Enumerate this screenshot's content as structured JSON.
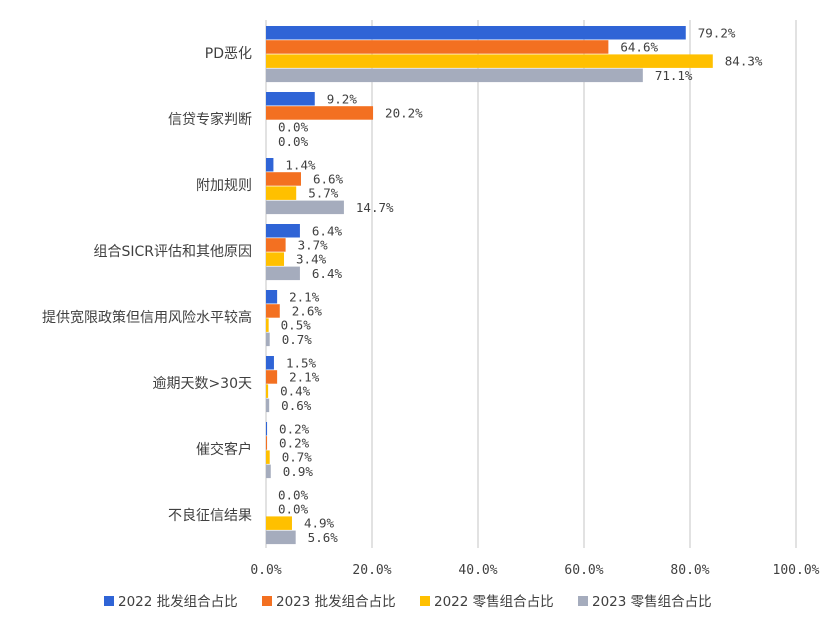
{
  "chart_data": {
    "type": "bar",
    "orientation": "horizontal",
    "categories": [
      "PD恶化",
      "信贷专家判断",
      "附加规则",
      "组合SICR评估和其他原因",
      "提供宽限政策但信用风险水平较高",
      "逾期天数>30天",
      "催交客户",
      "不良征信结果"
    ],
    "series": [
      {
        "name": "2022 批发组合占比",
        "color": "#2f64d6",
        "values": [
          79.2,
          9.2,
          1.4,
          6.4,
          2.1,
          1.5,
          0.2,
          0.0
        ],
        "labels": [
          "79.2%",
          "9.2%",
          "1.4%",
          "6.4%",
          "2.1%",
          "1.5%",
          "0.2%",
          "0.0%"
        ]
      },
      {
        "name": "2023 批发组合占比",
        "color": "#f37021",
        "values": [
          64.6,
          20.2,
          6.6,
          3.7,
          2.6,
          2.1,
          0.2,
          0.0
        ],
        "labels": [
          "64.6%",
          "20.2%",
          "6.6%",
          "3.7%",
          "2.6%",
          "2.1%",
          "0.2%",
          "0.0%"
        ]
      },
      {
        "name": "2022 零售组合占比",
        "color": "#ffc000",
        "values": [
          84.3,
          0.0,
          5.7,
          3.4,
          0.5,
          0.4,
          0.7,
          4.9
        ],
        "labels": [
          "84.3%",
          "0.0%",
          "5.7%",
          "3.4%",
          "0.5%",
          "0.4%",
          "0.7%",
          "4.9%"
        ]
      },
      {
        "name": "2023 零售组合占比",
        "color": "#a5acbd",
        "values": [
          71.1,
          0.0,
          14.7,
          6.4,
          0.7,
          0.6,
          0.9,
          5.6
        ],
        "labels": [
          "71.1%",
          "0.0%",
          "14.7%",
          "6.4%",
          "0.7%",
          "0.6%",
          "0.9%",
          "5.6%"
        ]
      }
    ],
    "x_ticks": [
      0,
      20,
      40,
      60,
      80,
      100
    ],
    "x_tick_labels": [
      "0.0%",
      "20.0%",
      "40.0%",
      "60.0%",
      "80.0%",
      "100.0%"
    ],
    "xlim": [
      0,
      100
    ],
    "grid": true,
    "legend_position": "bottom",
    "title": "",
    "xlabel": "",
    "ylabel": ""
  }
}
